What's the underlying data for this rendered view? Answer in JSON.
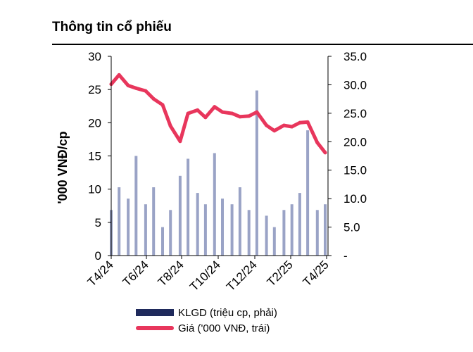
{
  "header": {
    "title": "Thông tin cổ phiếu"
  },
  "colors": {
    "price": "#e8365c",
    "volume": "#1f2a5c",
    "volume_bars": "#9aa3c6"
  },
  "chart_data": {
    "type": "bar+line",
    "title": "Thông tin cổ phiếu",
    "x_ticks": [
      "T4/24",
      "T6/24",
      "T8/24",
      "T10/24",
      "T12/24",
      "T2/25",
      "T4/25"
    ],
    "ylabel_left": "'000 VNĐ/cp",
    "ylim_left": [
      0,
      30
    ],
    "yticks_left": [
      "0",
      "5",
      "10",
      "15",
      "20",
      "25",
      "30"
    ],
    "ylim_right": [
      0,
      35
    ],
    "yticks_right": [
      "-",
      "5.0",
      "10.0",
      "15.0",
      "20.0",
      "25.0",
      "30.0",
      "35.0"
    ],
    "grid": false,
    "legend_position": "bottom",
    "series": [
      {
        "name": "KLGD (triệu cp, phải)",
        "type": "bar",
        "axis": "right",
        "x": [
          "2024-04-01",
          "2024-04-15",
          "2024-05-01",
          "2024-05-15",
          "2024-06-01",
          "2024-06-15",
          "2024-07-01",
          "2024-07-15",
          "2024-08-01",
          "2024-08-15",
          "2024-09-01",
          "2024-09-15",
          "2024-10-01",
          "2024-10-15",
          "2024-11-01",
          "2024-11-15",
          "2024-12-01",
          "2024-12-15",
          "2025-01-01",
          "2025-01-15",
          "2025-02-01",
          "2025-02-15",
          "2025-03-01",
          "2025-03-15",
          "2025-04-01",
          "2025-04-15"
        ],
        "values": [
          8,
          12,
          10,
          17.5,
          9,
          12,
          5,
          8,
          14,
          17,
          11,
          9,
          18,
          10,
          9,
          12,
          8,
          29,
          7,
          5,
          8,
          9,
          11,
          22,
          8,
          9
        ]
      },
      {
        "name": "Giá ('000 VNĐ, trái)",
        "type": "line",
        "axis": "left",
        "x": [
          "2024-04-01",
          "2024-04-15",
          "2024-05-01",
          "2024-05-15",
          "2024-06-01",
          "2024-06-15",
          "2024-07-01",
          "2024-07-15",
          "2024-08-01",
          "2024-08-15",
          "2024-09-01",
          "2024-09-15",
          "2024-10-01",
          "2024-10-15",
          "2024-11-01",
          "2024-11-15",
          "2024-12-01",
          "2024-12-15",
          "2025-01-01",
          "2025-01-15",
          "2025-02-01",
          "2025-02-15",
          "2025-03-01",
          "2025-03-15",
          "2025-04-01",
          "2025-04-15"
        ],
        "values": [
          25.8,
          27.2,
          25.6,
          25.2,
          24.8,
          23.6,
          22.7,
          19.5,
          17.2,
          21.4,
          21.9,
          20.8,
          22.4,
          21.6,
          21.4,
          20.9,
          21.0,
          21.6,
          19.6,
          18.8,
          19.6,
          19.4,
          20.0,
          20.1,
          17.0,
          15.5
        ]
      }
    ]
  },
  "legend": {
    "volume_label": "KLGD (triệu cp, phải)",
    "price_label": "Giá ('000 VNĐ, trái)"
  }
}
